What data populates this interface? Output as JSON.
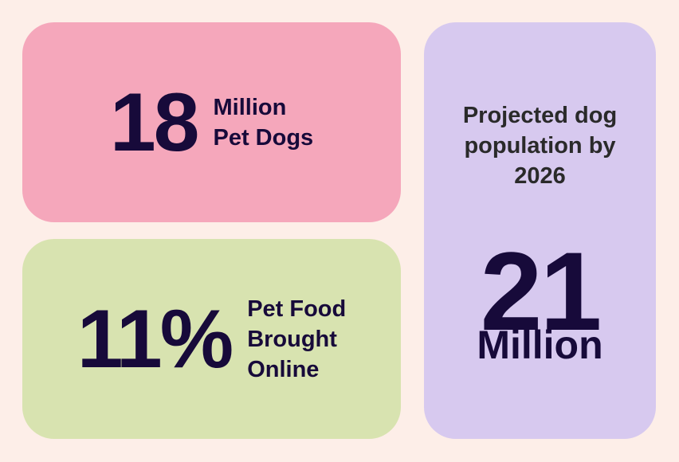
{
  "cards": [
    {
      "stat": "18",
      "label": [
        "Million",
        "Pet Dogs"
      ]
    },
    {
      "stat": "11%",
      "label": [
        "Pet Food",
        "Brought",
        "Online"
      ]
    },
    {
      "title": [
        "Projected dog",
        "population by",
        "2026"
      ],
      "stat": "21",
      "unit": "Million"
    }
  ]
}
